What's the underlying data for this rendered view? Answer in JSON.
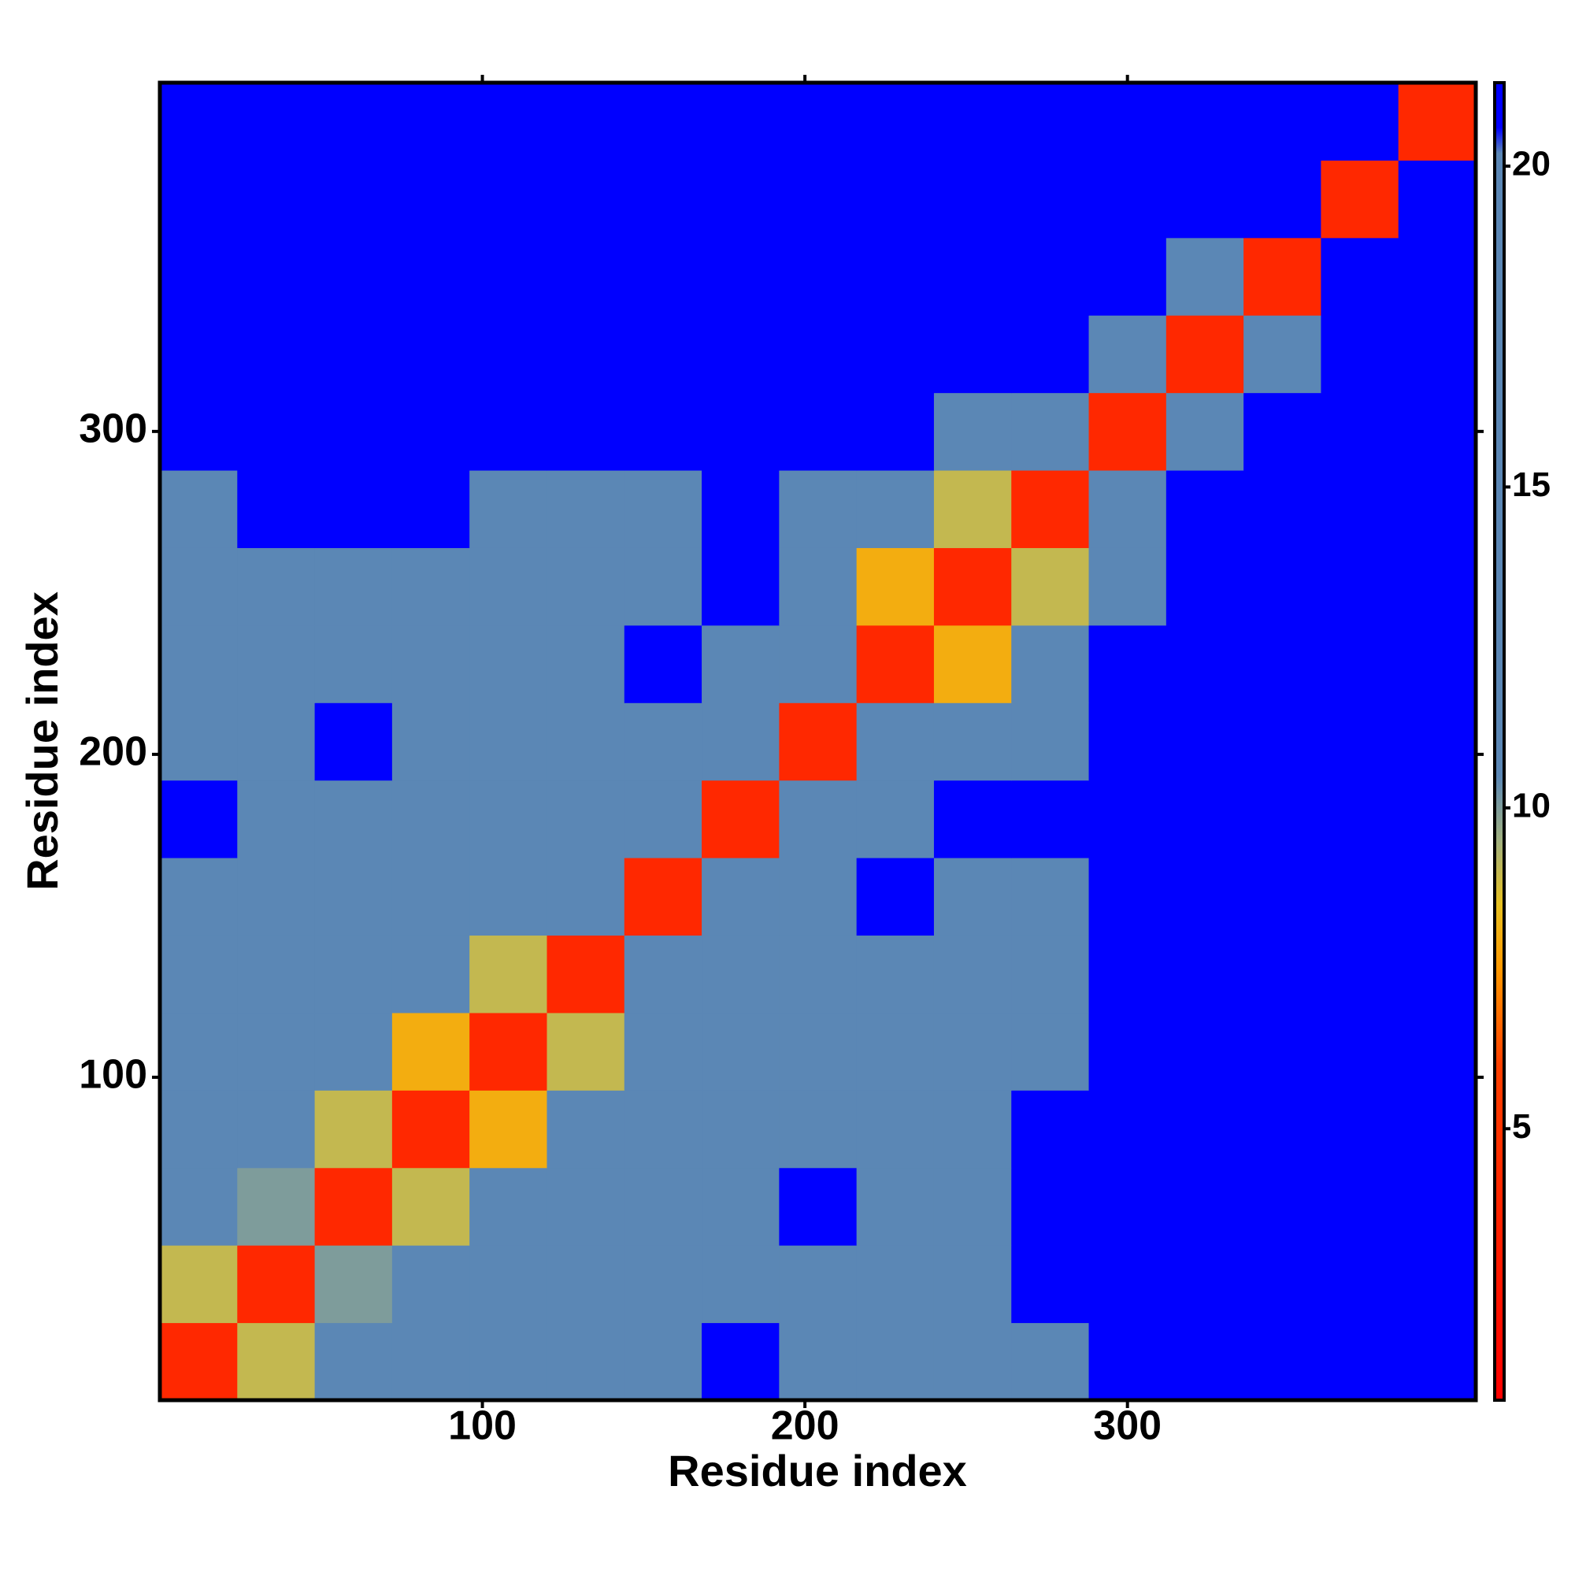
{
  "chart_data": {
    "type": "heatmap",
    "xlabel": "Residue index",
    "ylabel": "Residue index",
    "bins": [
      0,
      24,
      48,
      72,
      96,
      120,
      144,
      168,
      192,
      216,
      240,
      264,
      288,
      312,
      336,
      360,
      384,
      408
    ],
    "values": [
      [
        4,
        9,
        12,
        14,
        17,
        18,
        19,
        22,
        20,
        19,
        19,
        20,
        22,
        22,
        22,
        22,
        22
      ],
      [
        9,
        4,
        10,
        13,
        18,
        18,
        19,
        19,
        20,
        20,
        20,
        22,
        22,
        22,
        22,
        22,
        22
      ],
      [
        12,
        10,
        4,
        9,
        16,
        18,
        19,
        20,
        22,
        20,
        20,
        22,
        22,
        22,
        22,
        22,
        22
      ],
      [
        14,
        13,
        9,
        4,
        8,
        12,
        17,
        18,
        19,
        19,
        19,
        22,
        22,
        22,
        22,
        22,
        22
      ],
      [
        17,
        18,
        16,
        8,
        4,
        9,
        15,
        18,
        18,
        18,
        13,
        18,
        22,
        22,
        22,
        22,
        22
      ],
      [
        18,
        18,
        18,
        12,
        9,
        4,
        12,
        17,
        17,
        18,
        11,
        18,
        22,
        22,
        22,
        22,
        22
      ],
      [
        19,
        19,
        19,
        17,
        15,
        12,
        4,
        13,
        18,
        22,
        18,
        19,
        22,
        22,
        22,
        22,
        22
      ],
      [
        22,
        19,
        20,
        18,
        18,
        17,
        13,
        4,
        14,
        19,
        22,
        22,
        22,
        22,
        22,
        22,
        22
      ],
      [
        20,
        20,
        22,
        19,
        18,
        17,
        18,
        14,
        4,
        14,
        18,
        19,
        22,
        22,
        22,
        22,
        22
      ],
      [
        19,
        20,
        20,
        19,
        18,
        18,
        22,
        19,
        14,
        4,
        8,
        12,
        22,
        22,
        22,
        22,
        22
      ],
      [
        19,
        20,
        20,
        19,
        13,
        11,
        18,
        22,
        18,
        8,
        4,
        9,
        19,
        22,
        22,
        22,
        22
      ],
      [
        20,
        22,
        22,
        22,
        18,
        18,
        19,
        22,
        19,
        12,
        9,
        4,
        17,
        22,
        22,
        22,
        22
      ],
      [
        22,
        22,
        22,
        22,
        22,
        22,
        22,
        22,
        22,
        22,
        19,
        17,
        4,
        19,
        22,
        22,
        22
      ],
      [
        22,
        22,
        22,
        22,
        22,
        22,
        22,
        22,
        22,
        22,
        22,
        22,
        19,
        4,
        20,
        22,
        22
      ],
      [
        22,
        22,
        22,
        22,
        22,
        22,
        22,
        22,
        22,
        22,
        22,
        22,
        22,
        20,
        4,
        21,
        22
      ],
      [
        22,
        22,
        22,
        22,
        22,
        22,
        22,
        22,
        22,
        22,
        22,
        22,
        22,
        22,
        21,
        4,
        21
      ],
      [
        22,
        22,
        22,
        22,
        22,
        22,
        22,
        22,
        22,
        22,
        22,
        22,
        22,
        22,
        22,
        21,
        4
      ]
    ],
    "xlim": [
      0,
      408
    ],
    "ylim": [
      0,
      408
    ],
    "xticks": [
      100,
      200,
      300
    ],
    "yticks": [
      100,
      200,
      300
    ],
    "clim": [
      0.77,
      21.3
    ],
    "cticks": [
      5,
      10,
      15,
      20
    ],
    "colorscale": [
      [
        0.77,
        "#ff0000"
      ],
      [
        6,
        "#ff4000"
      ],
      [
        7.5,
        "#ff9900"
      ],
      [
        8.5,
        "#e6c020"
      ],
      [
        9.5,
        "#a0b080"
      ],
      [
        10.5,
        "#5b87b5"
      ],
      [
        20.2,
        "#5b87b5"
      ],
      [
        20.6,
        "#0000ff"
      ],
      [
        21.3,
        "#0000ff"
      ]
    ]
  }
}
